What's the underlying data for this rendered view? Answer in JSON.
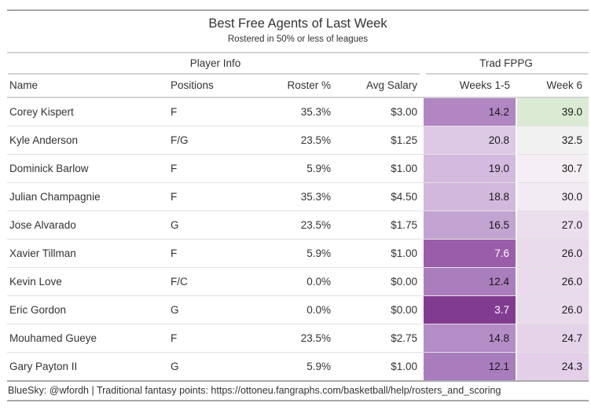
{
  "chart_data": {
    "type": "table",
    "title": "Best Free Agents of Last Week",
    "subtitle": "Rostered in 50% or less of leagues",
    "spanners": [
      {
        "label": "Player Info",
        "columns": [
          "Name",
          "Positions",
          "Roster %",
          "Avg Salary"
        ]
      },
      {
        "label": "Trad FPPG",
        "columns": [
          "Weeks 1-5",
          "Week 6"
        ]
      }
    ],
    "columns": [
      "Name",
      "Positions",
      "Roster %",
      "Avg Salary",
      "Weeks 1-5",
      "Week 6"
    ],
    "rows": [
      {
        "name": "Corey Kispert",
        "positions": "F",
        "roster_pct": "35.3%",
        "avg_salary": "$3.00",
        "weeks_1_5": "14.2",
        "week_6": "39.0",
        "weeks_1_5_bg": "#b186c3",
        "weeks_1_5_fg": "#1a1a1a",
        "week_6_bg": "#dbebd3",
        "week_6_fg": "#1a1a1a"
      },
      {
        "name": "Kyle Anderson",
        "positions": "F/G",
        "roster_pct": "23.5%",
        "avg_salary": "$1.25",
        "weeks_1_5": "20.8",
        "week_6": "32.5",
        "weeks_1_5_bg": "#ddc9e5",
        "weeks_1_5_fg": "#1a1a1a",
        "week_6_bg": "#f2f1f1",
        "week_6_fg": "#1a1a1a"
      },
      {
        "name": "Dominick Barlow",
        "positions": "F",
        "roster_pct": "5.9%",
        "avg_salary": "$1.00",
        "weeks_1_5": "19.0",
        "week_6": "30.7",
        "weeks_1_5_bg": "#d3bade",
        "weeks_1_5_fg": "#1a1a1a",
        "week_6_bg": "#f5eef5",
        "week_6_fg": "#1a1a1a"
      },
      {
        "name": "Julian Champagnie",
        "positions": "F",
        "roster_pct": "35.3%",
        "avg_salary": "$4.50",
        "weeks_1_5": "18.8",
        "week_6": "30.0",
        "weeks_1_5_bg": "#d1b8dc",
        "weeks_1_5_fg": "#1a1a1a",
        "week_6_bg": "#f2ebf3",
        "week_6_fg": "#1a1a1a"
      },
      {
        "name": "Jose Alvarado",
        "positions": "G",
        "roster_pct": "23.5%",
        "avg_salary": "$1.75",
        "weeks_1_5": "16.5",
        "week_6": "27.0",
        "weeks_1_5_bg": "#c3a3d2",
        "weeks_1_5_fg": "#1a1a1a",
        "week_6_bg": "#ebdeed",
        "week_6_fg": "#1a1a1a"
      },
      {
        "name": "Xavier Tillman",
        "positions": "F",
        "roster_pct": "5.9%",
        "avg_salary": "$1.00",
        "weeks_1_5": "7.6",
        "week_6": "26.0",
        "weeks_1_5_bg": "#9a5daa",
        "weeks_1_5_fg": "#ffffff",
        "week_6_bg": "#e9dbec",
        "week_6_fg": "#1a1a1a"
      },
      {
        "name": "Kevin Love",
        "positions": "F/C",
        "roster_pct": "0.0%",
        "avg_salary": "$0.00",
        "weeks_1_5": "12.4",
        "week_6": "26.0",
        "weeks_1_5_bg": "#aa7ebd",
        "weeks_1_5_fg": "#1a1a1a",
        "week_6_bg": "#e9dbec",
        "week_6_fg": "#1a1a1a"
      },
      {
        "name": "Eric Gordon",
        "positions": "G",
        "roster_pct": "0.0%",
        "avg_salary": "$0.00",
        "weeks_1_5": "3.7",
        "week_6": "26.0",
        "weeks_1_5_bg": "#813c92",
        "weeks_1_5_fg": "#ffffff",
        "week_6_bg": "#e9dbec",
        "week_6_fg": "#1a1a1a"
      },
      {
        "name": "Mouhamed Gueye",
        "positions": "F",
        "roster_pct": "23.5%",
        "avg_salary": "$2.75",
        "weeks_1_5": "14.8",
        "week_6": "24.7",
        "weeks_1_5_bg": "#b48cc6",
        "weeks_1_5_fg": "#1a1a1a",
        "week_6_bg": "#e5d3e9",
        "week_6_fg": "#1a1a1a"
      },
      {
        "name": "Gary Payton II",
        "positions": "G",
        "roster_pct": "5.9%",
        "avg_salary": "$1.00",
        "weeks_1_5": "12.1",
        "week_6": "24.3",
        "weeks_1_5_bg": "#a97cbd",
        "weeks_1_5_fg": "#1a1a1a",
        "week_6_bg": "#e3d0e8",
        "week_6_fg": "#1a1a1a"
      }
    ],
    "heatmap_legend": {
      "low_value": "3.7",
      "low_color": "#813c92",
      "high_value": "39.0",
      "high_color": "#dbebd3",
      "palette": "purple-white-green"
    },
    "source_note": "BlueSky: @wfordh | Traditional fantasy points: https://ottoneu.fangraphs.com/basketball/help/rosters_and_scoring",
    "layout": {
      "grid": "horizontal-rules-only",
      "column_align": [
        "left",
        "left",
        "right",
        "right",
        "right",
        "right"
      ]
    }
  },
  "colors": {
    "border_dark": "#A8A8A8",
    "border_light": "#D3D3D3",
    "row_line": "#E1E1E1",
    "text": "#333333",
    "background": "#ffffff"
  }
}
